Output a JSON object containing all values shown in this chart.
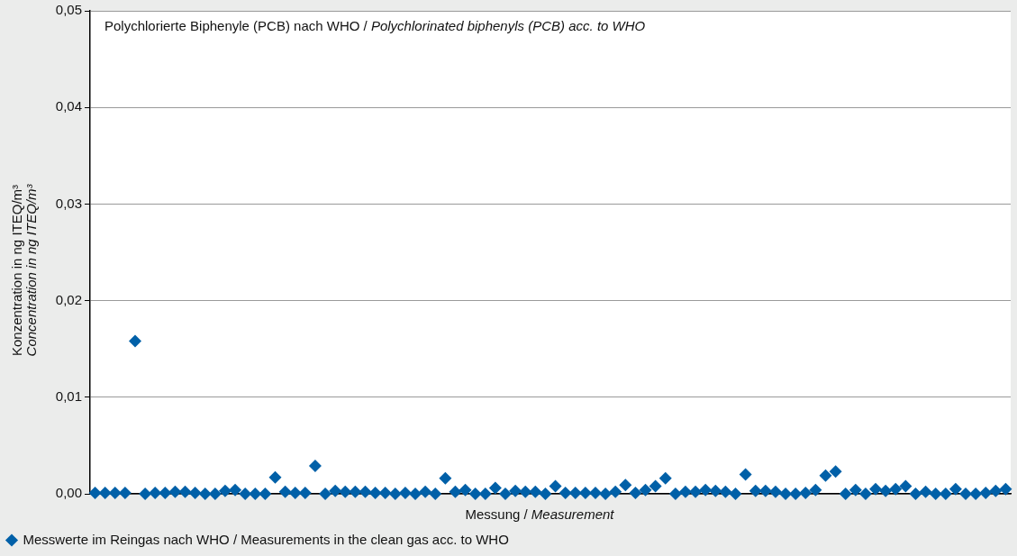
{
  "chart_data": {
    "type": "scatter",
    "title": "Polychlorierte Biphenyle (PCB) nach WHO / Polychlorinated biphenyls (PCB) acc. to WHO",
    "xlabel": "Messung / Measurement",
    "ylabel": "Konzentration in ng ITEQ/m³\nConcentration in ng ITEQ/m³",
    "categories": [
      null,
      null,
      null,
      null,
      null,
      null,
      null,
      null,
      null,
      null,
      null,
      null,
      null,
      null,
      null,
      null,
      null,
      null,
      null,
      null,
      null,
      null,
      null,
      null,
      null,
      null,
      null,
      null,
      null,
      null,
      null,
      null,
      null,
      null,
      null,
      null,
      null,
      null,
      null,
      null,
      null,
      null,
      null,
      null,
      null,
      null,
      null,
      null,
      null,
      null,
      null,
      null,
      null,
      null,
      null,
      null,
      null,
      null,
      null,
      null,
      null,
      null,
      null,
      null,
      null,
      null,
      null,
      null,
      null,
      null,
      null,
      null,
      null,
      null,
      null,
      null,
      null,
      null,
      null,
      null,
      null,
      null,
      null,
      null,
      null,
      null,
      null,
      null,
      null,
      null,
      null,
      null
    ],
    "series": [
      {
        "name": "Messwerte im Reingas nach WHO / Measurements in the clean gas acc. to WHO",
        "color": "#0060a8",
        "values": [
          0.0001,
          0.0001,
          0.0001,
          0.0001,
          0.0158,
          0.0,
          0.0001,
          0.0001,
          0.0002,
          0.0002,
          0.0001,
          0.0,
          0.0,
          0.0003,
          0.0004,
          0.0,
          0.0,
          0.0,
          0.0017,
          0.0002,
          0.0001,
          0.0001,
          0.0029,
          0.0,
          0.0003,
          0.0002,
          0.0002,
          0.0002,
          0.0001,
          0.0001,
          0.0,
          0.0001,
          0.0,
          0.0002,
          0.0,
          0.0016,
          0.0002,
          0.0004,
          0.0,
          0.0,
          0.0006,
          0.0,
          0.0003,
          0.0002,
          0.0002,
          0.0,
          0.0008,
          0.0001,
          0.0001,
          0.0001,
          0.0001,
          0.0,
          0.0002,
          0.0009,
          0.0001,
          0.0004,
          0.0008,
          0.0016,
          0.0,
          0.0002,
          0.0002,
          0.0004,
          0.0003,
          0.0002,
          0.0,
          0.002,
          0.0003,
          0.0003,
          0.0002,
          0.0,
          0.0,
          0.0001,
          0.0004,
          0.0019,
          0.0023,
          0.0,
          0.0004,
          0.0,
          0.0005,
          0.0003,
          0.0005,
          0.0008,
          0.0,
          0.0002,
          0.0,
          0.0,
          0.0005,
          0.0,
          0.0,
          0.0001,
          0.0003,
          0.0005
        ]
      }
    ],
    "ylim": [
      0,
      0.05
    ],
    "yticks": [
      {
        "value": 0,
        "label": "0,00"
      },
      {
        "value": 0.01,
        "label": "0,01"
      },
      {
        "value": 0.02,
        "label": "0,02"
      },
      {
        "value": 0.03,
        "label": "0,03"
      },
      {
        "value": 0.04,
        "label": "0,04"
      },
      {
        "value": 0.05,
        "label": "0,05"
      }
    ],
    "tick_labels": "y",
    "grid": "y",
    "legend": "bottom left",
    "marker": "diamond"
  }
}
